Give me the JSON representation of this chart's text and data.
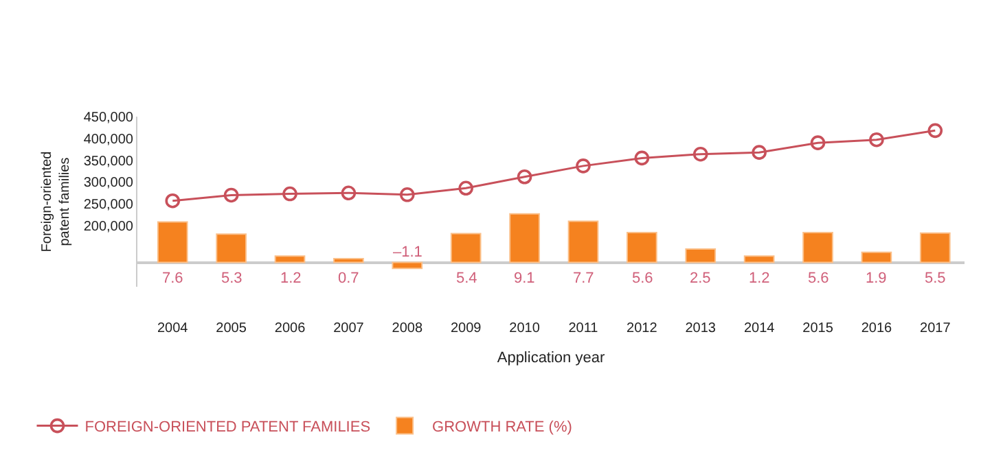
{
  "chart_data": {
    "type": "line",
    "xlabel": "Application year",
    "ylabel": "Foreign-oriented\npatent families",
    "categories": [
      "2004",
      "2005",
      "2006",
      "2007",
      "2008",
      "2009",
      "2010",
      "2011",
      "2012",
      "2013",
      "2014",
      "2015",
      "2016",
      "2017"
    ],
    "series": [
      {
        "name": "FOREIGN-ORIENTED PATENT FAMILIES",
        "color": "#c8505a",
        "marker": "circle",
        "values": [
          257000,
          270000,
          273000,
          275000,
          271000,
          286000,
          312000,
          337000,
          355000,
          364000,
          368000,
          390000,
          397000,
          418000
        ]
      },
      {
        "name": "GROWTH RATE (%)",
        "type": "bar",
        "axis": "y2",
        "color": "#f5821f",
        "values": [
          7.6,
          5.3,
          1.2,
          0.7,
          -1.1,
          5.4,
          9.1,
          7.7,
          5.6,
          2.5,
          1.2,
          5.6,
          1.9,
          5.5
        ],
        "value_labels": [
          "7.6",
          "5.3",
          "1.2",
          "0.7",
          "–1.1",
          "5.4",
          "9.1",
          "7.7",
          "5.6",
          "2.5",
          "1.2",
          "5.6",
          "1.9",
          "5.5"
        ]
      }
    ],
    "ylim": [
      60000,
      450000
    ],
    "yticks": [
      {
        "value": 200000,
        "label": "200,000"
      },
      {
        "value": 250000,
        "label": "250,000"
      },
      {
        "value": 300000,
        "label": "300,000"
      },
      {
        "value": 350000,
        "label": "350,000"
      },
      {
        "value": 400000,
        "label": "400,000"
      },
      {
        "value": 450000,
        "label": "450,000"
      }
    ],
    "grid": false,
    "legend": "bottom left"
  }
}
